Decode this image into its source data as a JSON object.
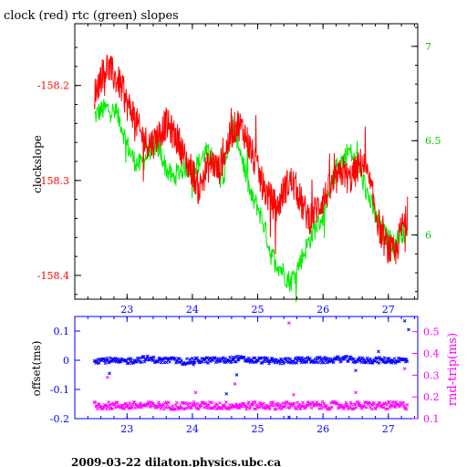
{
  "title": "clock (red) rtc (green) slopes",
  "footer": "2009-03-22  dilaton.physics.ubc.ca",
  "colors": {
    "clock": "#ff0000",
    "rtc": "#00ee00",
    "offset": "#0000ff",
    "rndtrip": "#ff00ff",
    "frame": "#000000"
  },
  "chart_data": [
    {
      "type": "line",
      "ylabel": "clockslope",
      "xlim": [
        22.2,
        27.45
      ],
      "ylim": [
        -158.425,
        -158.135
      ],
      "xticks": [
        "23",
        "24",
        "25",
        "26",
        "27"
      ],
      "yticks_left": [
        "-158.2",
        "-158.3",
        "-158.4"
      ],
      "yticks_right": [
        "7",
        "6.5",
        "6"
      ],
      "y2lim": [
        5.66,
        7.12
      ],
      "series": [
        {
          "name": "clock",
          "color": "red",
          "x": [
            22.5,
            22.6,
            22.7,
            22.8,
            22.9,
            23.0,
            23.1,
            23.2,
            23.3,
            23.4,
            23.5,
            23.6,
            23.7,
            23.8,
            23.9,
            24.0,
            24.1,
            24.2,
            24.3,
            24.4,
            24.5,
            24.6,
            24.7,
            24.8,
            24.9,
            25.0,
            25.1,
            25.2,
            25.3,
            25.4,
            25.5,
            25.6,
            25.7,
            25.8,
            25.9,
            26.0,
            26.1,
            26.2,
            26.3,
            26.4,
            26.5,
            26.6,
            26.7,
            26.8,
            26.9,
            27.0,
            27.1,
            27.2,
            27.3
          ],
          "y": [
            -158.21,
            -158.19,
            -158.18,
            -158.19,
            -158.2,
            -158.22,
            -158.23,
            -158.25,
            -158.26,
            -158.26,
            -158.25,
            -158.24,
            -158.25,
            -158.26,
            -158.28,
            -158.29,
            -158.31,
            -158.29,
            -158.28,
            -158.29,
            -158.27,
            -158.25,
            -158.24,
            -158.25,
            -158.27,
            -158.29,
            -158.31,
            -158.32,
            -158.33,
            -158.31,
            -158.3,
            -158.31,
            -158.33,
            -158.34,
            -158.33,
            -158.32,
            -158.31,
            -158.3,
            -158.29,
            -158.3,
            -158.29,
            -158.28,
            -158.3,
            -158.33,
            -158.36,
            -158.37,
            -158.38,
            -158.35,
            -158.34
          ]
        },
        {
          "name": "rtc",
          "color": "green",
          "x": [
            22.5,
            22.6,
            22.7,
            22.8,
            22.9,
            23.0,
            23.1,
            23.2,
            23.3,
            23.4,
            23.5,
            23.6,
            23.7,
            23.8,
            23.9,
            24.0,
            24.1,
            24.2,
            24.3,
            24.4,
            24.5,
            24.6,
            24.7,
            24.8,
            24.9,
            25.0,
            25.1,
            25.2,
            25.3,
            25.4,
            25.5,
            25.6,
            25.7,
            25.8,
            25.9,
            26.0,
            26.1,
            26.2,
            26.3,
            26.4,
            26.5,
            26.6,
            26.7,
            26.8,
            26.9,
            27.0,
            27.1,
            27.2,
            27.3
          ],
          "y": [
            6.63,
            6.66,
            6.67,
            6.65,
            6.6,
            6.48,
            6.4,
            6.37,
            6.42,
            6.48,
            6.45,
            6.35,
            6.3,
            6.34,
            6.36,
            6.35,
            6.38,
            6.44,
            6.4,
            6.35,
            6.32,
            6.6,
            6.5,
            6.35,
            6.2,
            6.15,
            6.05,
            5.9,
            5.85,
            5.8,
            5.75,
            5.82,
            5.9,
            5.98,
            6.05,
            6.1,
            6.22,
            6.35,
            6.4,
            6.45,
            6.38,
            6.3,
            6.2,
            6.1,
            6.02,
            5.98,
            5.95,
            6.02,
            6.0
          ]
        }
      ]
    },
    {
      "type": "scatter",
      "ylabel": "offset(ms)",
      "y2label": "rnd-trip(ms)",
      "xlim": [
        22.2,
        27.45
      ],
      "ylim": [
        -0.2,
        0.15
      ],
      "y2lim": [
        0.1,
        0.57
      ],
      "xticks": [
        "23",
        "24",
        "25",
        "26",
        "27"
      ],
      "yticks_left": [
        "0.1",
        "0",
        "-0.1",
        "-0.2"
      ],
      "yticks_right": [
        "0.5",
        "0.4",
        "0.3",
        "0.2",
        "0.1"
      ],
      "series": [
        {
          "name": "offset",
          "color": "blue",
          "x": [
            22.5,
            22.7,
            22.9,
            23.1,
            23.3,
            23.5,
            23.7,
            23.9,
            24.1,
            24.3,
            24.5,
            24.7,
            24.9,
            25.1,
            25.3,
            25.5,
            25.7,
            25.9,
            26.1,
            26.3,
            26.5,
            26.7,
            26.9,
            27.1,
            27.3
          ],
          "y": [
            0.0,
            0.0,
            -0.005,
            0.0,
            0.005,
            0.0,
            0.0,
            -0.005,
            0.0,
            0.0,
            0.0,
            0.005,
            0.0,
            0.0,
            -0.005,
            0.0,
            0.0,
            0.0,
            0.0,
            0.005,
            0.0,
            0.0,
            0.0,
            0.0,
            0.0
          ]
        },
        {
          "name": "rnd-trip",
          "color": "magenta",
          "x": [
            22.5,
            22.7,
            22.9,
            23.1,
            23.3,
            23.5,
            23.7,
            23.9,
            24.1,
            24.3,
            24.5,
            24.7,
            24.9,
            25.1,
            25.3,
            25.5,
            25.7,
            25.9,
            26.1,
            26.3,
            26.5,
            26.7,
            26.9,
            27.1,
            27.3
          ],
          "y": [
            0.16,
            0.16,
            0.16,
            0.16,
            0.16,
            0.16,
            0.16,
            0.16,
            0.16,
            0.16,
            0.16,
            0.16,
            0.16,
            0.16,
            0.16,
            0.16,
            0.16,
            0.16,
            0.16,
            0.16,
            0.16,
            0.16,
            0.16,
            0.16,
            0.16
          ]
        }
      ],
      "outliers_offset": [
        [
          22.73,
          -0.045
        ],
        [
          24.02,
          -0.015
        ],
        [
          24.52,
          -0.115
        ],
        [
          24.68,
          -0.05
        ],
        [
          25.48,
          -0.195
        ],
        [
          26.5,
          -0.035
        ],
        [
          26.85,
          0.03
        ],
        [
          27.25,
          0.135
        ],
        [
          27.31,
          0.105
        ]
      ],
      "outliers_rndtrip": [
        [
          22.7,
          0.29
        ],
        [
          24.05,
          0.22
        ],
        [
          24.65,
          0.26
        ],
        [
          25.48,
          0.54
        ],
        [
          25.55,
          0.21
        ],
        [
          26.5,
          0.22
        ],
        [
          27.25,
          0.33
        ]
      ]
    }
  ]
}
